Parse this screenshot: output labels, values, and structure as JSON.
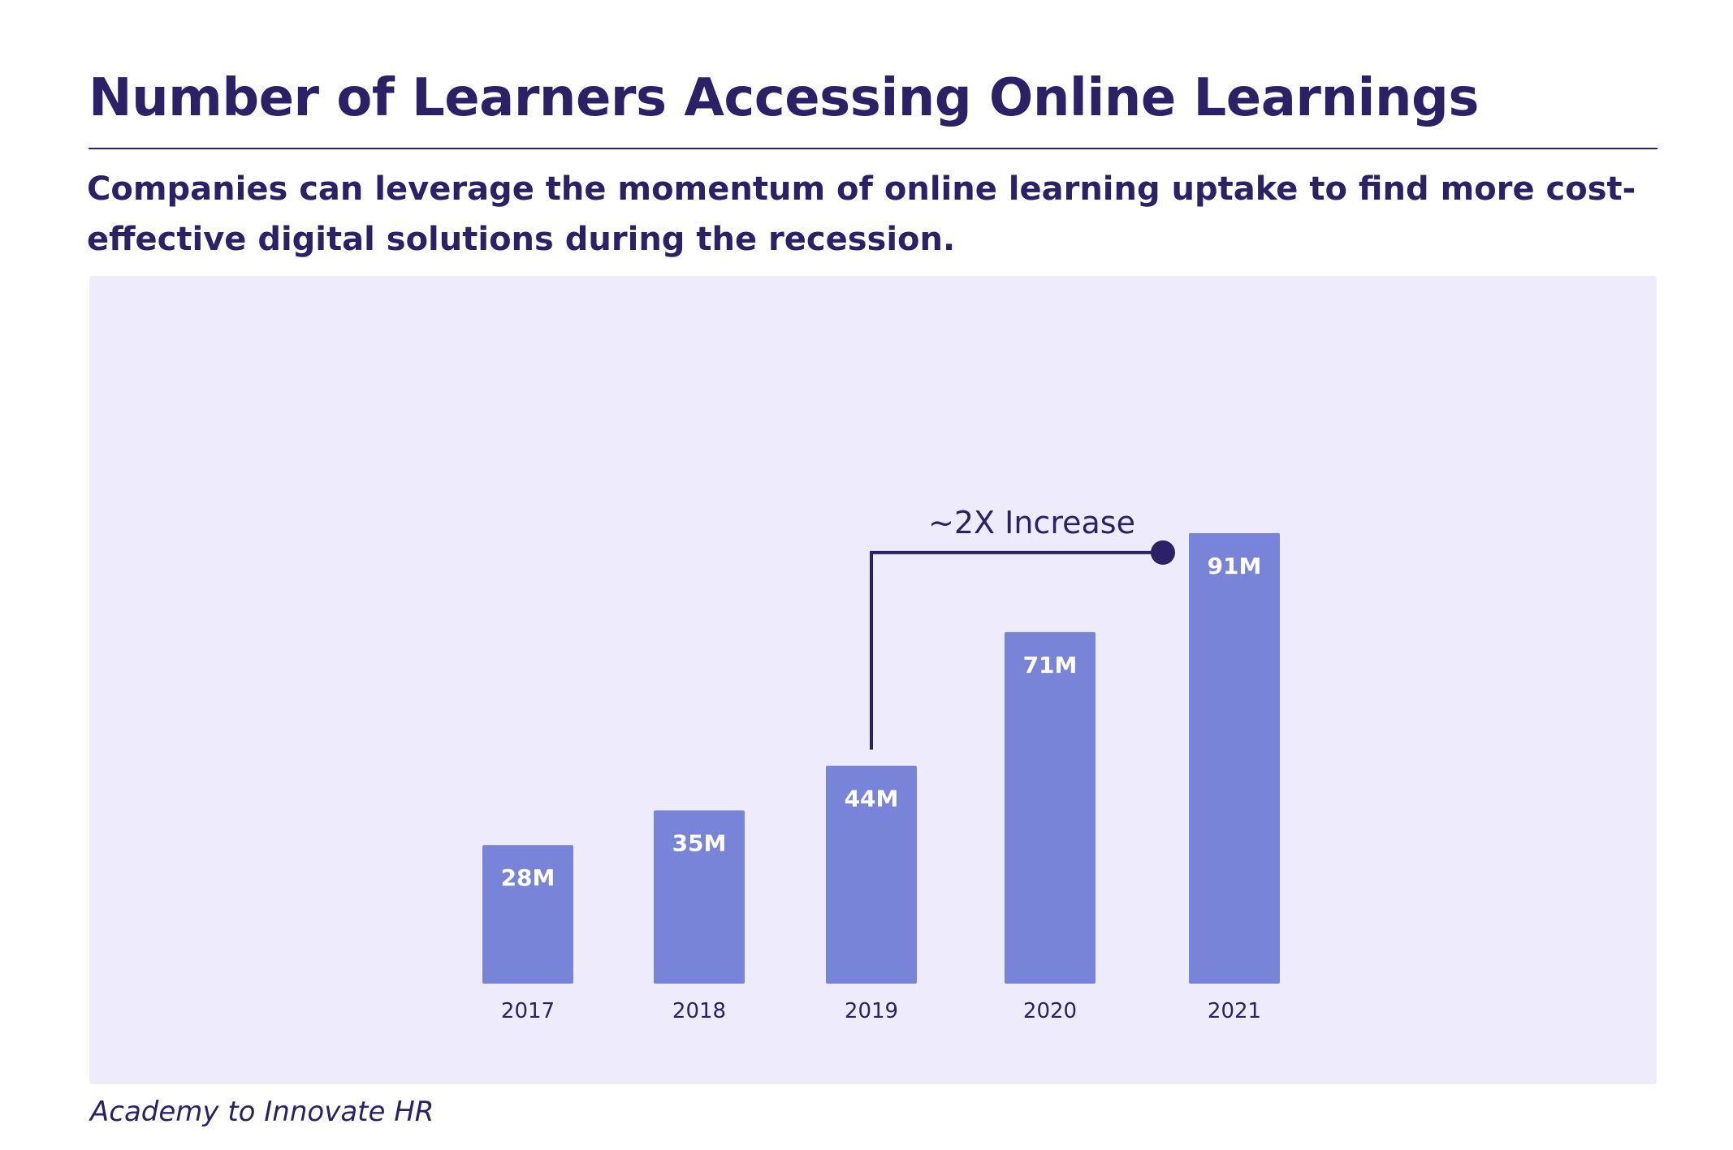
{
  "title": "Number of Learners Accessing Online Learnings",
  "subtitle": "Companies can leverage the momentum of online learning uptake to find more cost-effective digital solutions during the recession.",
  "source": "Academy to Innovate HR",
  "colors": {
    "title": "#2c2166",
    "panel_background": "#eeecfc",
    "bar": "#7884d8",
    "bar_label": "#ffffff",
    "annotation": "#2c2166"
  },
  "chart_data": {
    "type": "bar",
    "title": "",
    "xlabel": "",
    "ylabel": "",
    "categories": [
      "2017",
      "2018",
      "2019",
      "2020",
      "2021"
    ],
    "values": [
      28,
      35,
      44,
      71,
      91
    ],
    "data_labels": [
      "28M",
      "35M",
      "44M",
      "71M",
      "91M"
    ],
    "unit": "M",
    "grid": false,
    "legend": "none",
    "annotations": [
      {
        "text": "~2X Increase",
        "from_category": "2019",
        "to_category": "2021"
      }
    ]
  }
}
